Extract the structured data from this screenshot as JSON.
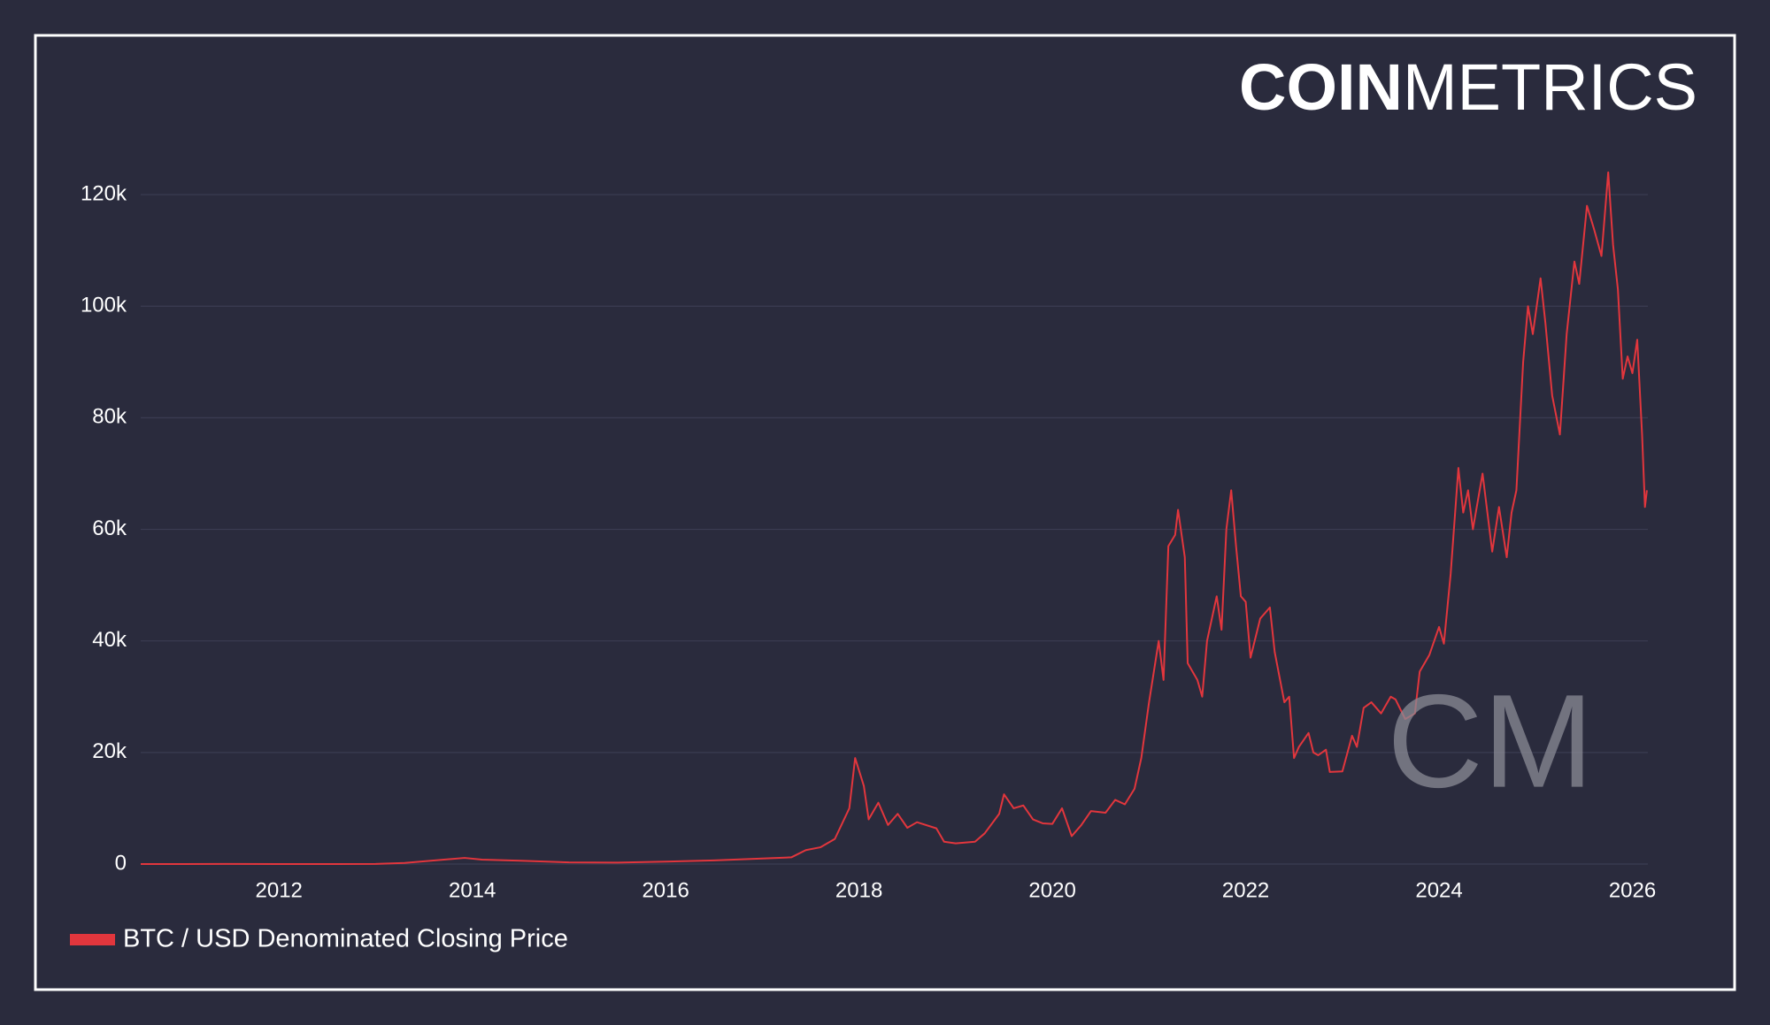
{
  "brand": {
    "bold": "COIN",
    "light": "METRICS"
  },
  "watermark": "CM",
  "chart_data": {
    "type": "line",
    "x": [
      2010.57,
      2011.0,
      2011.45,
      2012.0,
      2013.0,
      2013.3,
      2013.92,
      2014.1,
      2014.5,
      2015.0,
      2015.5,
      2016.0,
      2016.5,
      2017.0,
      2017.3,
      2017.45,
      2017.6,
      2017.75,
      2017.9,
      2017.96,
      2018.05,
      2018.1,
      2018.2,
      2018.3,
      2018.4,
      2018.5,
      2018.6,
      2018.8,
      2018.88,
      2019.0,
      2019.2,
      2019.3,
      2019.45,
      2019.5,
      2019.6,
      2019.7,
      2019.8,
      2019.9,
      2020.0,
      2020.1,
      2020.2,
      2020.3,
      2020.4,
      2020.55,
      2020.65,
      2020.75,
      2020.85,
      2020.92,
      2021.0,
      2021.1,
      2021.15,
      2021.2,
      2021.27,
      2021.3,
      2021.37,
      2021.4,
      2021.5,
      2021.55,
      2021.6,
      2021.7,
      2021.75,
      2021.8,
      2021.85,
      2021.9,
      2021.95,
      2022.0,
      2022.05,
      2022.15,
      2022.25,
      2022.3,
      2022.4,
      2022.45,
      2022.5,
      2022.55,
      2022.65,
      2022.7,
      2022.75,
      2022.83,
      2022.87,
      2023.0,
      2023.1,
      2023.15,
      2023.22,
      2023.3,
      2023.4,
      2023.5,
      2023.55,
      2023.65,
      2023.75,
      2023.8,
      2023.9,
      2024.0,
      2024.05,
      2024.12,
      2024.2,
      2024.25,
      2024.3,
      2024.35,
      2024.45,
      2024.55,
      2024.62,
      2024.7,
      2024.75,
      2024.8,
      2024.87,
      2024.92,
      2024.97,
      2025.05,
      2025.1,
      2025.17,
      2025.25,
      2025.32,
      2025.4,
      2025.45,
      2025.53,
      2025.6,
      2025.68,
      2025.75,
      2025.8,
      2025.85,
      2025.9,
      2025.95,
      2026.0,
      2026.05,
      2026.1,
      2026.13,
      2026.15
    ],
    "series": [
      {
        "name": "BTC / USD Denominated Closing Price",
        "color": "#e2363d",
        "values": [
          0.07,
          0.3,
          17,
          5,
          13,
          200,
          1100,
          800,
          600,
          300,
          250,
          430,
          650,
          1000,
          1200,
          2500,
          3000,
          4500,
          10000,
          19000,
          14000,
          8000,
          11000,
          7000,
          9000,
          6500,
          7500,
          6400,
          4000,
          3700,
          4000,
          5500,
          9000,
          12500,
          10000,
          10500,
          8000,
          7300,
          7200,
          10000,
          5000,
          7000,
          9500,
          9200,
          11500,
          10700,
          13500,
          19000,
          29000,
          40000,
          33000,
          57000,
          59000,
          63500,
          55000,
          36000,
          33000,
          30000,
          40000,
          48000,
          42000,
          60000,
          67000,
          57000,
          48000,
          47000,
          37000,
          44000,
          46000,
          38000,
          29000,
          30000,
          19000,
          21000,
          23500,
          20000,
          19500,
          20500,
          16500,
          16600,
          23000,
          21000,
          28000,
          29000,
          27000,
          30000,
          29500,
          26000,
          27000,
          34500,
          37500,
          42500,
          39500,
          52000,
          71000,
          63000,
          67000,
          60000,
          70000,
          56000,
          64000,
          55000,
          63000,
          67000,
          90000,
          100000,
          95000,
          105000,
          97000,
          84000,
          77000,
          95000,
          108000,
          104000,
          118000,
          114000,
          109000,
          124000,
          111000,
          103000,
          87000,
          91000,
          88000,
          94000,
          77000,
          64000,
          67000
        ]
      }
    ],
    "xlim": [
      2010.57,
      2026.16
    ],
    "xticks": [
      2012,
      2014,
      2016,
      2018,
      2020,
      2022,
      2024,
      2026
    ],
    "ylim": [
      0,
      130000
    ],
    "yticks": [
      0,
      {
        "value": 20000,
        "label": "20k"
      },
      {
        "value": 40000,
        "label": "40k"
      },
      {
        "value": 60000,
        "label": "60k"
      },
      {
        "value": 80000,
        "label": "80k"
      },
      {
        "value": 100000,
        "label": "100k"
      },
      {
        "value": 120000,
        "label": "120k"
      }
    ],
    "grid": true,
    "legend": "bottom-left"
  }
}
